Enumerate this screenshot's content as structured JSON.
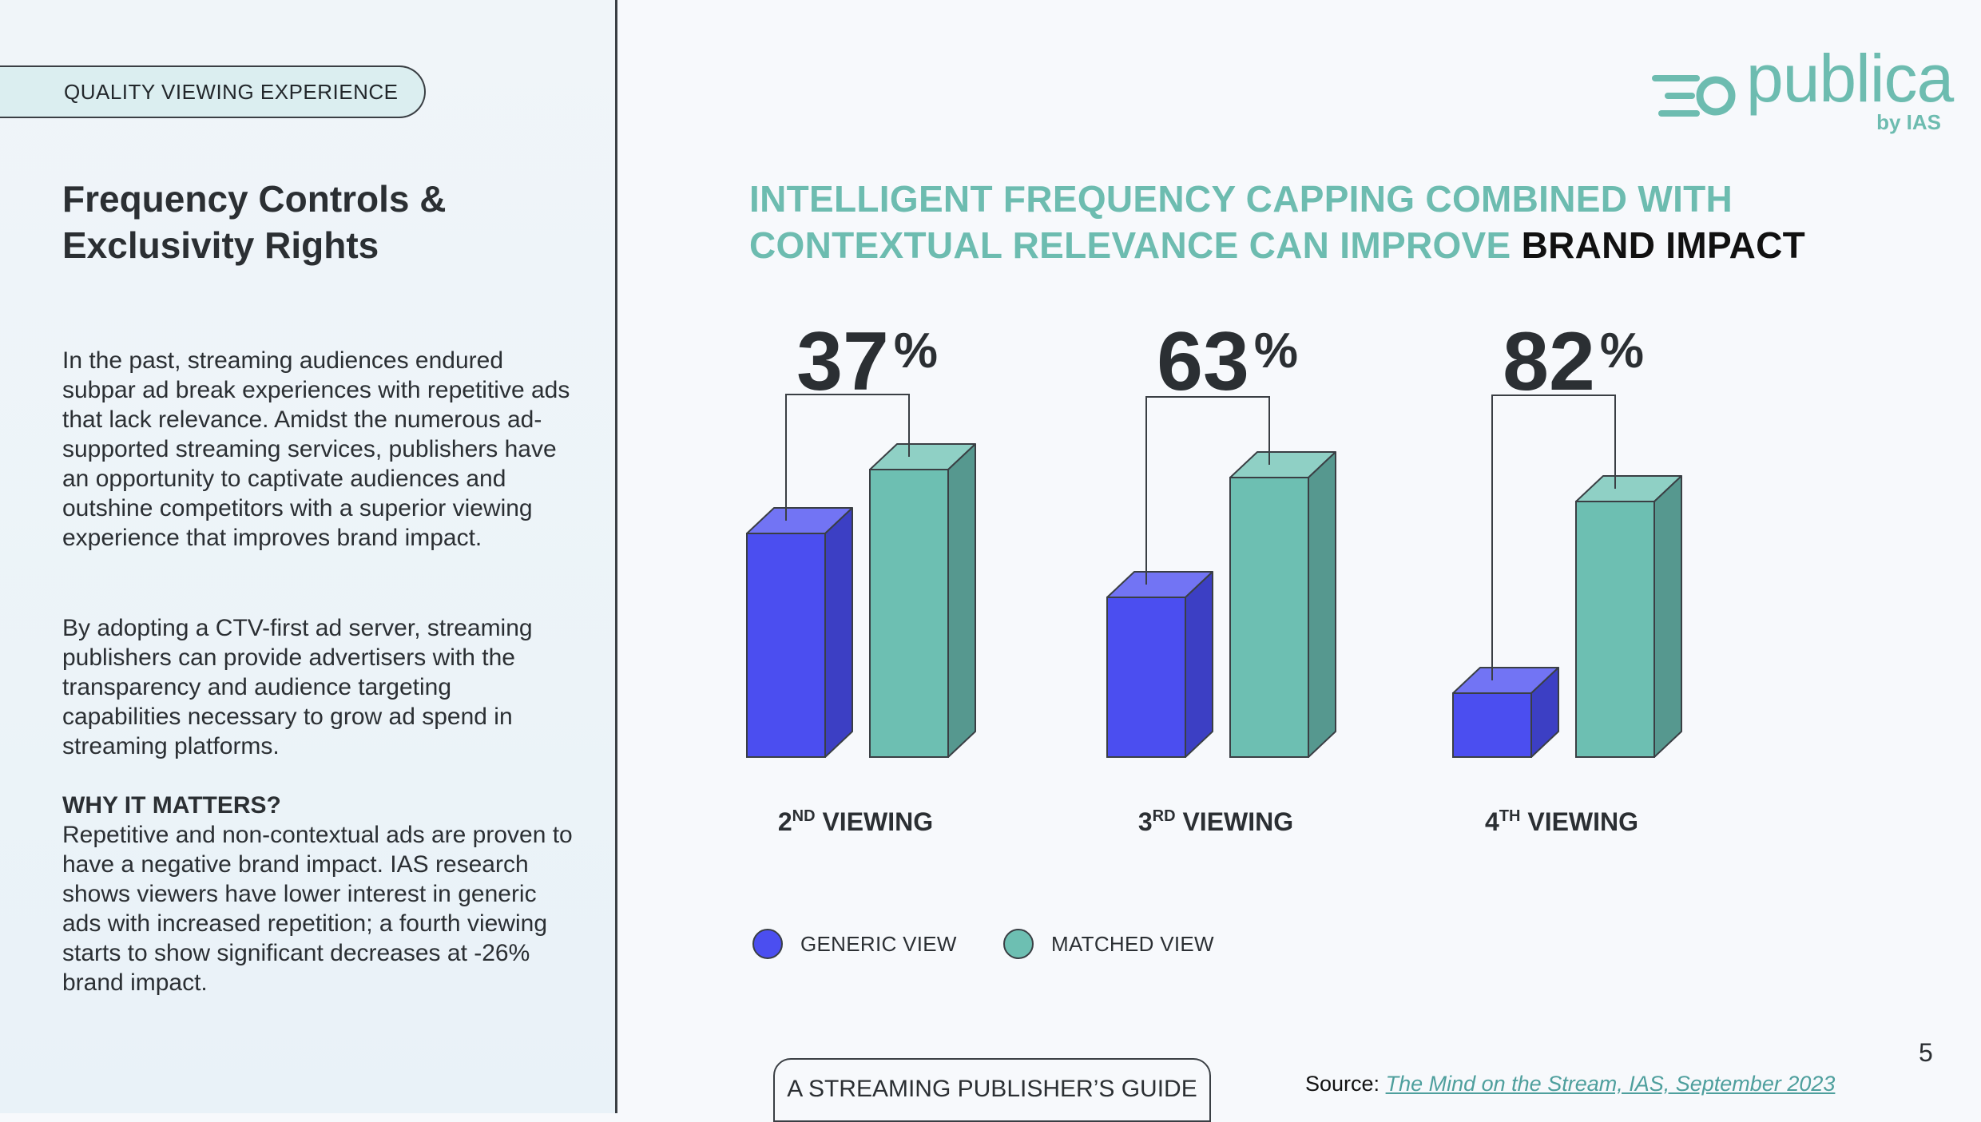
{
  "left": {
    "section_label": "QUALITY VIEWING EXPERIENCE",
    "title": "Frequency Controls & Exclusivity Rights",
    "paragraph1": "In the past, streaming audiences endured subpar ad break experiences with repetitive ads that lack relevance. Amidst the numerous ad-supported streaming services, publishers have an opportunity to captivate audiences and outshine competitors with a superior viewing experience that improves brand impact.",
    "paragraph2": "By adopting a CTV-first ad server, streaming publishers can provide advertisers with the transparency and audience targeting capabilities necessary to grow ad spend in streaming platforms.",
    "why_title": "WHY IT MATTERS?",
    "why_text": "Repetitive and non-contextual ads are proven to have a negative brand impact. IAS research shows viewers have lower interest in generic ads with increased repetition; a fourth viewing starts to show significant decreases at -26% brand impact."
  },
  "logo": {
    "word": "publica",
    "by": "by IAS",
    "icon": "speed-lines-circle-icon",
    "color": "#6dbcb0"
  },
  "headline": {
    "part1": "INTELLIGENT FREQUENCY CAPPING COMBINED WITH CONTEXTUAL RELEVANCE CAN IMPROVE",
    "part2": "BRAND IMPACT"
  },
  "chart_data": {
    "type": "bar",
    "categories": [
      {
        "num": "2",
        "sup": "ND",
        "label": "VIEWING",
        "full": "2ND VIEWING"
      },
      {
        "num": "3",
        "sup": "RD",
        "label": "VIEWING",
        "full": "3RD VIEWING"
      },
      {
        "num": "4",
        "sup": "TH",
        "label": "VIEWING",
        "full": "4TH VIEWING"
      }
    ],
    "series": [
      {
        "name": "GENERIC VIEW",
        "values": [
          28,
          20,
          8
        ],
        "color": "#4b4ef0",
        "top_color": "#7274f4",
        "side_color": "#3c3fc4"
      },
      {
        "name": "MATCHED VIEW",
        "values": [
          36,
          35,
          32
        ],
        "color": "#6dbfb2",
        "top_color": "#8fd0c5",
        "side_color": "#56988f"
      }
    ],
    "uplift_labels": [
      {
        "value": "37",
        "unit": "%"
      },
      {
        "value": "63",
        "unit": "%"
      },
      {
        "value": "82",
        "unit": "%"
      }
    ],
    "ylim": [
      0,
      40
    ],
    "axes_visible": false,
    "grid": false,
    "legend_position": "bottom-left"
  },
  "footer": {
    "guide_label": "A STREAMING PUBLISHER’S GUIDE",
    "source_prefix": "Source:",
    "source_link": "The Mind on the Stream, IAS, September 2023",
    "page_number": "5"
  }
}
